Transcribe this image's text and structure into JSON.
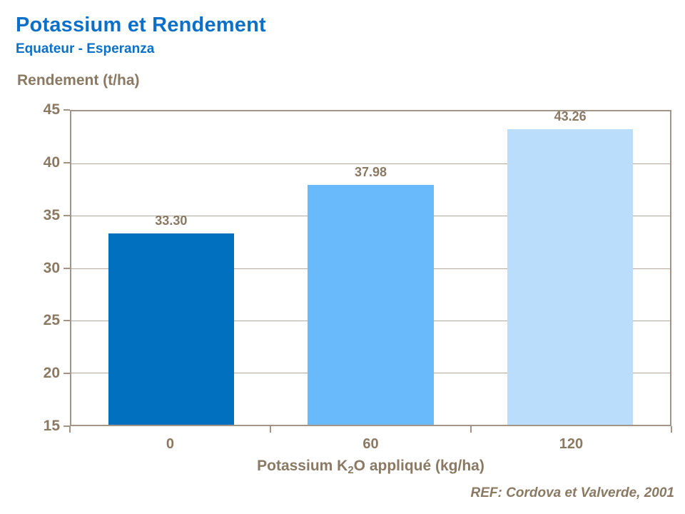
{
  "header": {
    "title": "Potassium et Rendement",
    "subtitle": "Equateur - Esperanza"
  },
  "footer": {
    "reference": "REF: Cordova et Valverde, 2001"
  },
  "colors": {
    "title_blue": "#0C70C8",
    "text_brown": "#8A7963",
    "axis_frame": "#A39486",
    "gridline": "#B3A89B"
  },
  "chart_data": {
    "type": "bar",
    "title": "Potassium et Rendement",
    "subtitle": "Equateur - Esperanza",
    "categories": [
      "0",
      "60",
      "120"
    ],
    "values": [
      33.3,
      37.98,
      43.26
    ],
    "value_labels": [
      "33.30",
      "37.98",
      "43.26"
    ],
    "xlabel": "Potassium K2O appliqué (kg/ha)",
    "xlabel_parts": {
      "prefix": "Potassium K",
      "sub": "2",
      "suffix": "O appliqué (kg/ha)"
    },
    "ylabel": "Rendement (t/ha)",
    "ylim": [
      15,
      45
    ],
    "ytick_step": 5,
    "grid": true,
    "legend": "none",
    "bar_colors": [
      "#0070BF",
      "#68BAFB",
      "#BADDFC"
    ]
  }
}
